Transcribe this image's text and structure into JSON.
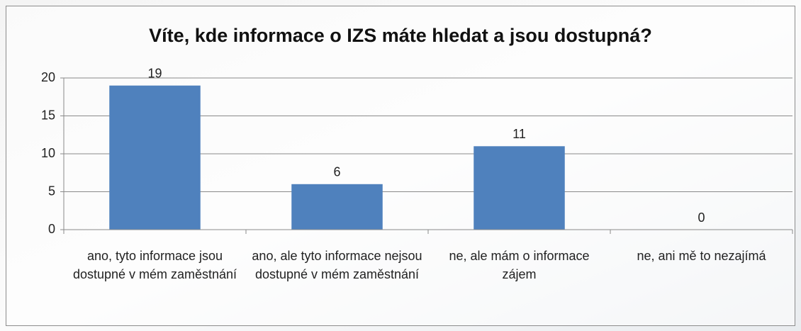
{
  "chart_data": {
    "type": "bar",
    "title": "Víte, kde informace o IZS máte hledat a jsou dostupná?",
    "categories": [
      "ano, tyto informace jsou dostupné v mém zaměstnání",
      "ano, ale tyto informace nejsou dostupné v mém zaměstnání",
      "ne, ale mám o informace zájem",
      "ne, ani mě to nezajímá"
    ],
    "values": [
      19,
      6,
      11,
      0
    ],
    "color": "#4f81bd",
    "ylim": [
      0,
      20
    ],
    "yticks": [
      0,
      5,
      10,
      15,
      20
    ],
    "grid": true
  }
}
